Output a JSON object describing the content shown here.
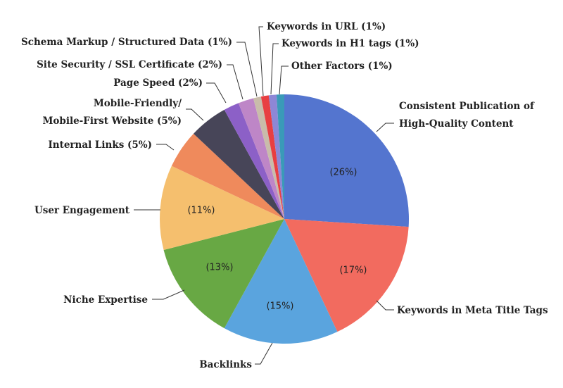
{
  "chart_data": {
    "type": "pie",
    "title": "",
    "slices": [
      {
        "label": "Consistent Publication of High-Quality Content",
        "label_lines": [
          "Consistent Publication of",
          "High-Quality Content"
        ],
        "value": 26,
        "pct_label": "(26%)",
        "color": "#5475cf"
      },
      {
        "label": "Keywords in Meta Title Tags",
        "label_lines": [
          "Keywords in Meta Title Tags"
        ],
        "value": 17,
        "pct_label": "(17%)",
        "color": "#f26b5f"
      },
      {
        "label": "Backlinks",
        "label_lines": [
          "Backlinks"
        ],
        "value": 15,
        "pct_label": "(15%)",
        "color": "#5aa4de"
      },
      {
        "label": "Niche Expertise",
        "label_lines": [
          "Niche Expertise"
        ],
        "value": 13,
        "pct_label": "(13%)",
        "color": "#68a844"
      },
      {
        "label": "User Engagement",
        "label_lines": [
          "User Engagement"
        ],
        "value": 11,
        "pct_label": "(11%)",
        "color": "#f5bf6e"
      },
      {
        "label": "Internal Links (5%)",
        "label_lines": [
          "Internal Links (5%)"
        ],
        "value": 5,
        "pct_label": "",
        "color": "#ef8a5c"
      },
      {
        "label": "Mobile-Friendly/ Mobile-First Website (5%)",
        "label_lines": [
          "Mobile-Friendly/",
          "Mobile-First Website (5%)"
        ],
        "value": 5,
        "pct_label": "",
        "color": "#474558"
      },
      {
        "label": "Page Speed (2%)",
        "label_lines": [
          "Page Speed (2%)"
        ],
        "value": 2,
        "pct_label": "",
        "color": "#8c60c7"
      },
      {
        "label": "Site Security / SSL Certificate (2%)",
        "label_lines": [
          "Site Security / SSL Certificate (2%)"
        ],
        "value": 2,
        "pct_label": "",
        "color": "#be86c7"
      },
      {
        "label": "Schema Markup / Structured Data (1%)",
        "label_lines": [
          "Schema Markup / Structured Data (1%)"
        ],
        "value": 1,
        "pct_label": "",
        "color": "#c9bcaa"
      },
      {
        "label": "Keywords in URL (1%)",
        "label_lines": [
          "Keywords in URL (1%)"
        ],
        "value": 1,
        "pct_label": "",
        "color": "#e83f42"
      },
      {
        "label": "Keywords in H1 tags (1%)",
        "label_lines": [
          "Keywords in H1 tags (1%)"
        ],
        "value": 1,
        "pct_label": "",
        "color": "#8d87d6"
      },
      {
        "label": "Other Factors (1%)",
        "label_lines": [
          "Other Factors (1%)"
        ],
        "value": 1,
        "pct_label": "",
        "color": "#3a9ab8"
      }
    ]
  }
}
